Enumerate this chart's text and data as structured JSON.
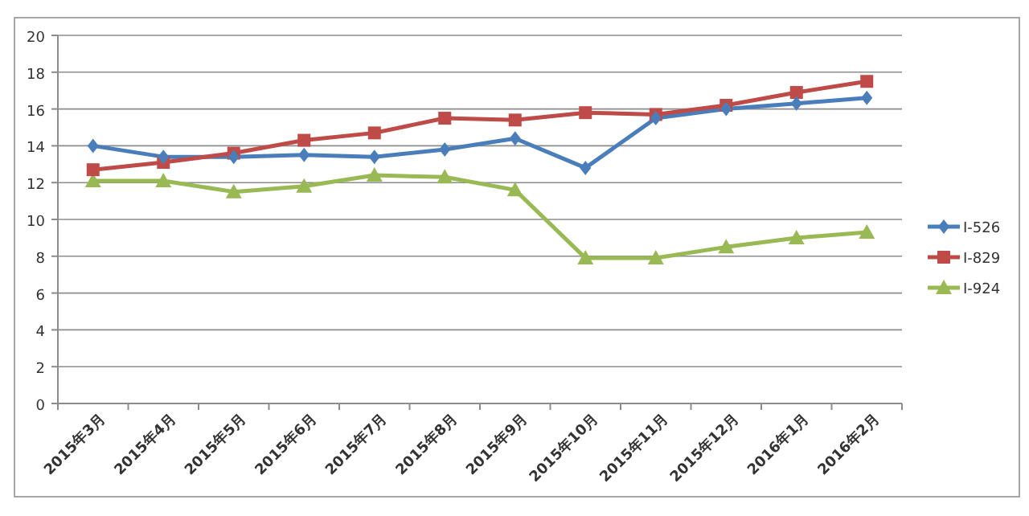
{
  "chart_data": {
    "type": "line",
    "categories": [
      "2015年3月",
      "2015年4月",
      "2015年5月",
      "2015年6月",
      "2015年7月",
      "2015年8月",
      "2015年9月",
      "2015年10月",
      "2015年11月",
      "2015年12月",
      "2016年1月",
      "2016年2月"
    ],
    "series": [
      {
        "name": "I-526",
        "color": "#4a7ebb",
        "marker": "diamond",
        "values": [
          14.0,
          13.4,
          13.4,
          13.5,
          13.4,
          13.8,
          14.4,
          12.8,
          15.5,
          16.0,
          16.3,
          16.6
        ]
      },
      {
        "name": "I-829",
        "color": "#be4b48",
        "marker": "square",
        "values": [
          12.7,
          13.1,
          13.6,
          14.3,
          14.7,
          15.5,
          15.4,
          15.8,
          15.7,
          16.2,
          16.9,
          17.5
        ]
      },
      {
        "name": "I-924",
        "color": "#98b954",
        "marker": "triangle",
        "values": [
          12.1,
          12.1,
          11.5,
          11.8,
          12.4,
          12.3,
          11.6,
          7.9,
          7.9,
          8.5,
          9.0,
          9.3
        ]
      }
    ],
    "ylim": [
      0,
      20
    ],
    "yticks": [
      0,
      2,
      4,
      6,
      8,
      10,
      12,
      14,
      16,
      18,
      20
    ],
    "grid": "y",
    "legend": "right"
  }
}
